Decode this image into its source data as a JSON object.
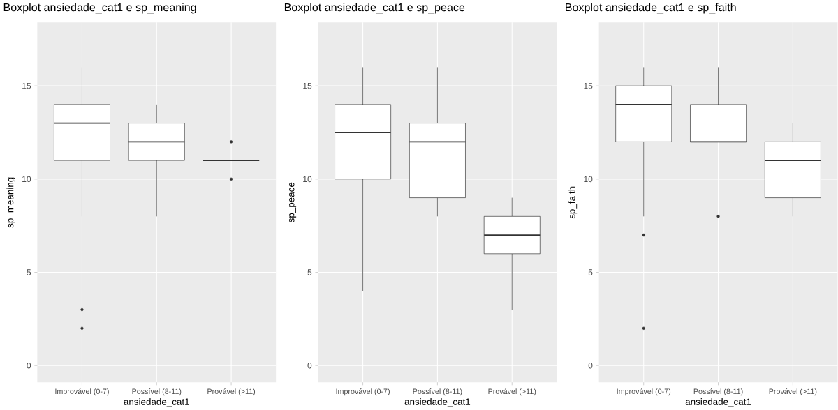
{
  "chart_data": [
    {
      "type": "box",
      "title": "Boxplot ansiedade_cat1 e sp_meaning",
      "xlabel": "ansiedade_cat1",
      "ylabel": "sp_meaning",
      "categories": [
        "Improvável (0-7)",
        "Possível (8-11)",
        "Provável (>11)"
      ],
      "grid": true,
      "ylim": [
        -0.9,
        18.4
      ],
      "yticks": [
        0,
        5,
        10,
        15
      ],
      "boxes": [
        {
          "low": 8,
          "q1": 11,
          "median": 13,
          "q3": 14,
          "high": 16,
          "outliers": [
            3,
            2
          ]
        },
        {
          "low": 8,
          "q1": 11,
          "median": 12,
          "q3": 13,
          "high": 14
        },
        {
          "low": 11,
          "q1": 11,
          "median": 11,
          "q3": 11,
          "high": 11,
          "outliers": [
            12,
            10
          ]
        }
      ]
    },
    {
      "type": "box",
      "title": "Boxplot ansiedade_cat1 e sp_peace",
      "xlabel": "ansiedade_cat1",
      "ylabel": "sp_peace",
      "categories": [
        "Improvável (0-7)",
        "Possível (8-11)",
        "Provável (>11)"
      ],
      "grid": true,
      "ylim": [
        -0.9,
        18.4
      ],
      "yticks": [
        0,
        5,
        10,
        15
      ],
      "boxes": [
        {
          "low": 4,
          "q1": 10,
          "median": 12.5,
          "q3": 14,
          "high": 16
        },
        {
          "low": 8,
          "q1": 9,
          "median": 12,
          "q3": 13,
          "high": 16
        },
        {
          "low": 3,
          "q1": 6,
          "median": 7,
          "q3": 8,
          "high": 9
        }
      ]
    },
    {
      "type": "box",
      "title": "Boxplot ansiedade_cat1 e sp_faith",
      "xlabel": "ansiedade_cat1",
      "ylabel": "sp_faith",
      "categories": [
        "Improvável (0-7)",
        "Possível (8-11)",
        "Provável (>11)"
      ],
      "grid": true,
      "ylim": [
        -0.9,
        18.4
      ],
      "yticks": [
        0,
        5,
        10,
        15
      ],
      "boxes": [
        {
          "low": 8,
          "q1": 12,
          "median": 14,
          "q3": 15,
          "high": 16,
          "outliers": [
            7,
            2
          ]
        },
        {
          "low": 12,
          "q1": 12,
          "median": 12,
          "q3": 14,
          "high": 16,
          "outliers": [
            8
          ]
        },
        {
          "low": 8,
          "q1": 9,
          "median": 11,
          "q3": 12,
          "high": 13
        }
      ]
    }
  ]
}
